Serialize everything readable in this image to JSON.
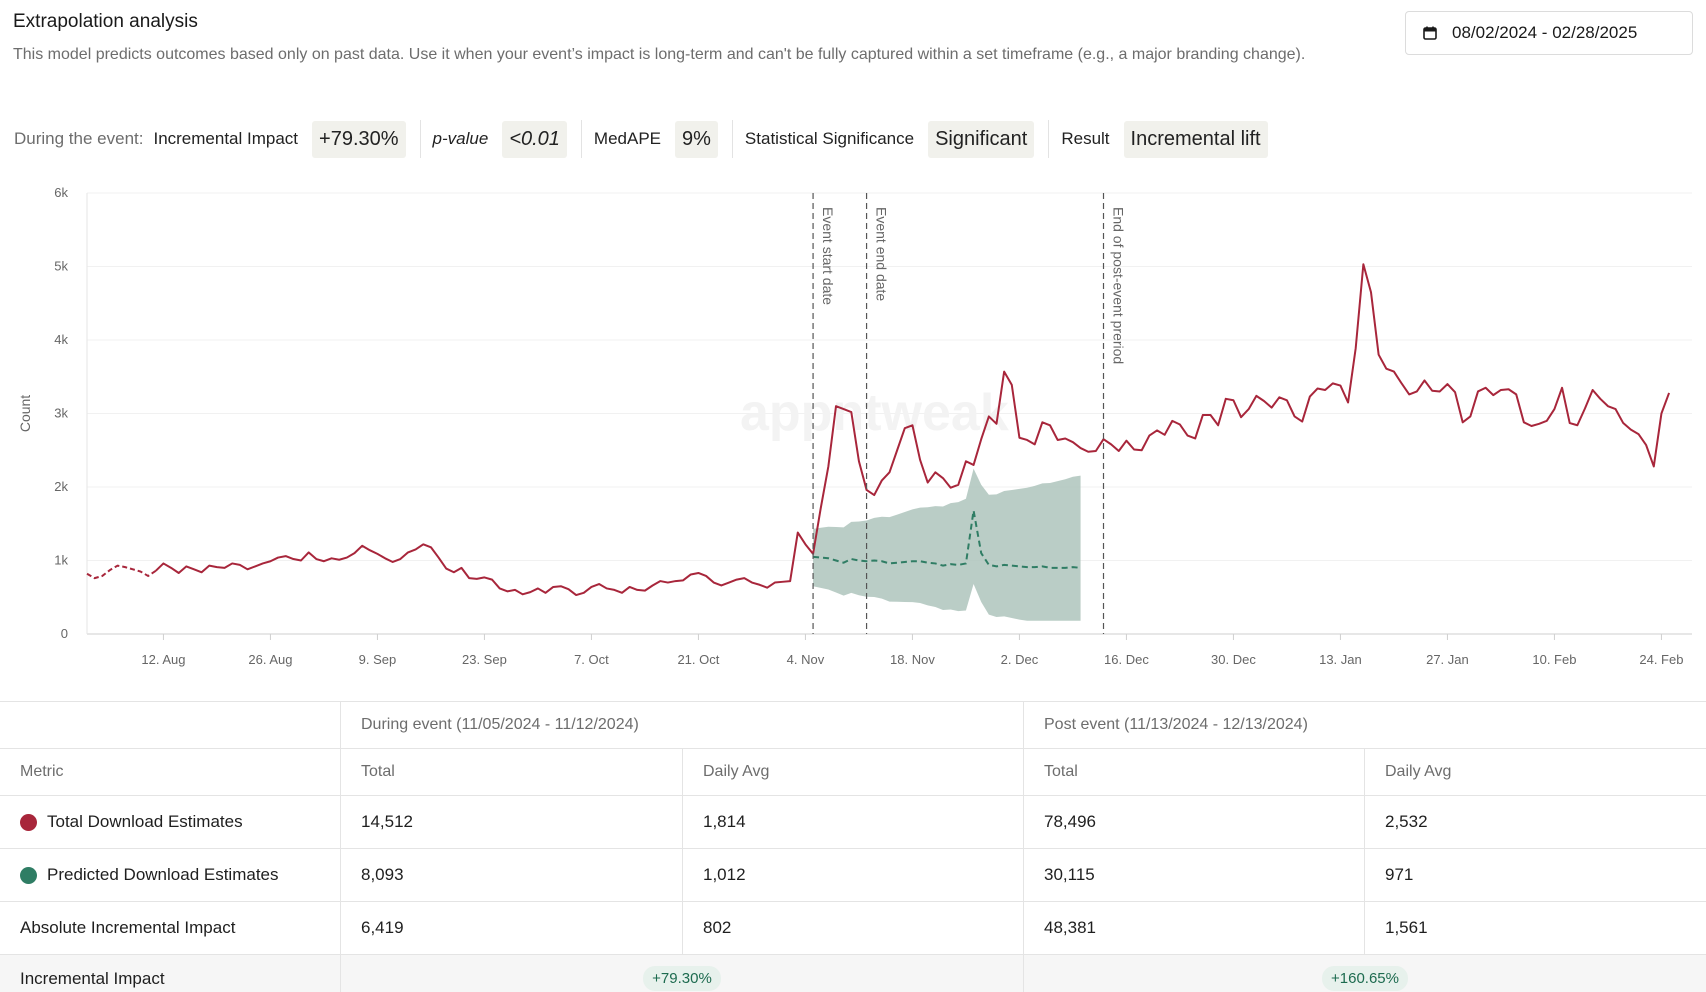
{
  "header": {
    "title": "Extrapolation analysis",
    "description": "This model predicts outcomes based only on past data. Use it when your event’s impact is long-term and can't be fully captured within a set timeframe (e.g., a major branding change)."
  },
  "date_range": {
    "icon": "calendar-icon",
    "label": "08/02/2024 - 02/28/2025"
  },
  "metrics": {
    "prefix": "During the event:",
    "incremental_impact_label": "Incremental Impact",
    "incremental_impact_value": "+79.30%",
    "pvalue_label": "p-value",
    "pvalue_value": "<0.01",
    "medape_label": "MedAPE",
    "medape_value": "9%",
    "significance_label": "Statistical Significance",
    "significance_value": "Significant",
    "result_label": "Result",
    "result_value": "Incremental lift"
  },
  "chart_data": {
    "type": "line",
    "ylabel": "Count",
    "ylim": [
      0,
      6000
    ],
    "yticks": [
      "0",
      "1k",
      "2k",
      "3k",
      "4k",
      "5k",
      "6k"
    ],
    "xticks": [
      "12. Aug",
      "26. Aug",
      "9. Sep",
      "23. Sep",
      "7. Oct",
      "21. Oct",
      "4. Nov",
      "18. Nov",
      "2. Dec",
      "16. Dec",
      "30. Dec",
      "13. Jan",
      "27. Jan",
      "10. Feb",
      "24. Feb"
    ],
    "x_start": "2024-08-02",
    "x_end": "2025-02-28",
    "markers": [
      {
        "date": "2024-11-05",
        "label": "Event start date"
      },
      {
        "date": "2024-11-12",
        "label": "Event end date"
      },
      {
        "date": "2024-12-13",
        "label": "End of post-event preriod"
      }
    ],
    "watermark": "appntweak",
    "colors": {
      "actual": "#a8263b",
      "predicted": "#2f7d64",
      "band": "#aec4bc"
    },
    "series": [
      {
        "name": "Total Download Estimates",
        "values": [
          820,
          760,
          790,
          870,
          930,
          910,
          880,
          850,
          790,
          860,
          960,
          900,
          830,
          920,
          880,
          840,
          930,
          910,
          900,
          960,
          940,
          880,
          920,
          960,
          990,
          1040,
          1060,
          1020,
          1000,
          1110,
          1020,
          990,
          1030,
          1010,
          1040,
          1100,
          1200,
          1140,
          1090,
          1030,
          980,
          1020,
          1110,
          1150,
          1220,
          1180,
          1040,
          890,
          840,
          900,
          760,
          750,
          770,
          740,
          620,
          580,
          600,
          540,
          570,
          620,
          560,
          640,
          650,
          610,
          530,
          560,
          640,
          680,
          620,
          600,
          560,
          640,
          600,
          590,
          660,
          720,
          700,
          720,
          730,
          810,
          830,
          790,
          700,
          660,
          700,
          740,
          760,
          700,
          670,
          630,
          700,
          710,
          720,
          1380,
          1220,
          1090,
          1710,
          2280,
          3100,
          3060,
          3020,
          2350,
          1960,
          1890,
          2090,
          2200,
          2500,
          2800,
          2840,
          2370,
          2060,
          2200,
          2120,
          1990,
          2030,
          2350,
          2300,
          2650,
          2960,
          2860,
          3570,
          3390,
          2670,
          2640,
          2580,
          2880,
          2840,
          2640,
          2660,
          2610,
          2530,
          2480,
          2490,
          2650,
          2580,
          2490,
          2630,
          2510,
          2500,
          2700,
          2770,
          2710,
          2900,
          2850,
          2700,
          2660,
          2980,
          2980,
          2840,
          3200,
          3180,
          2950,
          3060,
          3240,
          3170,
          3080,
          3220,
          3180,
          2960,
          2890,
          3230,
          3340,
          3320,
          3410,
          3380,
          3150,
          3890,
          5030,
          4650,
          3800,
          3610,
          3570,
          3410,
          3260,
          3300,
          3450,
          3310,
          3300,
          3400,
          3290,
          2880,
          2960,
          3300,
          3350,
          3250,
          3320,
          3330,
          3260,
          2880,
          2830,
          2860,
          2900,
          3060,
          3350,
          2870,
          2840,
          3070,
          3320,
          3200,
          3100,
          3060,
          2870,
          2780,
          2720,
          2570,
          2280,
          3000,
          3280
        ]
      },
      {
        "name": "Predicted Download Estimates",
        "values": [
          1050,
          1040,
          1030,
          1000,
          970,
          1020,
          1000,
          990,
          1000,
          990,
          960,
          970,
          980,
          990,
          990,
          970,
          960,
          930,
          950,
          940,
          960,
          1680,
          1100,
          940,
          920,
          940,
          930,
          920,
          910,
          910,
          920,
          900,
          900,
          900,
          910,
          900
        ]
      }
    ]
  },
  "table": {
    "groups": [
      {
        "label": "During event (11/05/2024 - 11/12/2024)"
      },
      {
        "label": "Post event (11/13/2024 - 12/13/2024)"
      }
    ],
    "columns": {
      "metric": "Metric",
      "total1": "Total",
      "avg1": "Daily Avg",
      "total2": "Total",
      "avg2": "Daily Avg"
    },
    "rows": [
      {
        "metric": "Total Download Estimates",
        "total1": "14,512",
        "avg1": "1,814",
        "total2": "78,496",
        "avg2": "2,532"
      },
      {
        "metric": "Predicted Download Estimates",
        "total1": "8,093",
        "avg1": "1,012",
        "total2": "30,115",
        "avg2": "971"
      },
      {
        "metric": "Absolute Incremental Impact",
        "total1": "6,419",
        "avg1": "802",
        "total2": "48,381",
        "avg2": "1,561"
      }
    ],
    "impact_row": {
      "metric": "Incremental Impact",
      "during": "+79.30%",
      "post": "+160.65%"
    }
  }
}
